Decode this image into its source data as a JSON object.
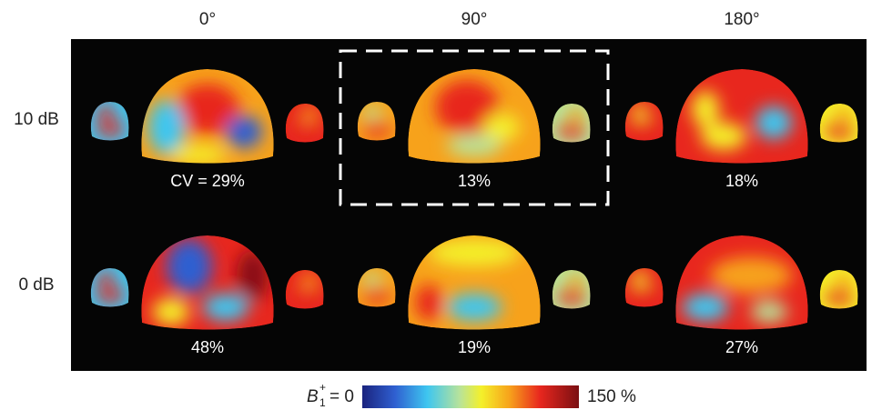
{
  "columns": [
    "0°",
    "90°",
    "180°"
  ],
  "rows": [
    {
      "label": "10 dB",
      "cv": [
        "CV = 29%",
        "13%",
        "18%"
      ]
    },
    {
      "label": "0 dB",
      "cv": [
        "48%",
        "19%",
        "27%"
      ]
    }
  ],
  "colorbar": {
    "symbol": "B",
    "subscript": "1",
    "superscript": "+",
    "min_label": "= 0",
    "max_label": "150 %"
  }
}
